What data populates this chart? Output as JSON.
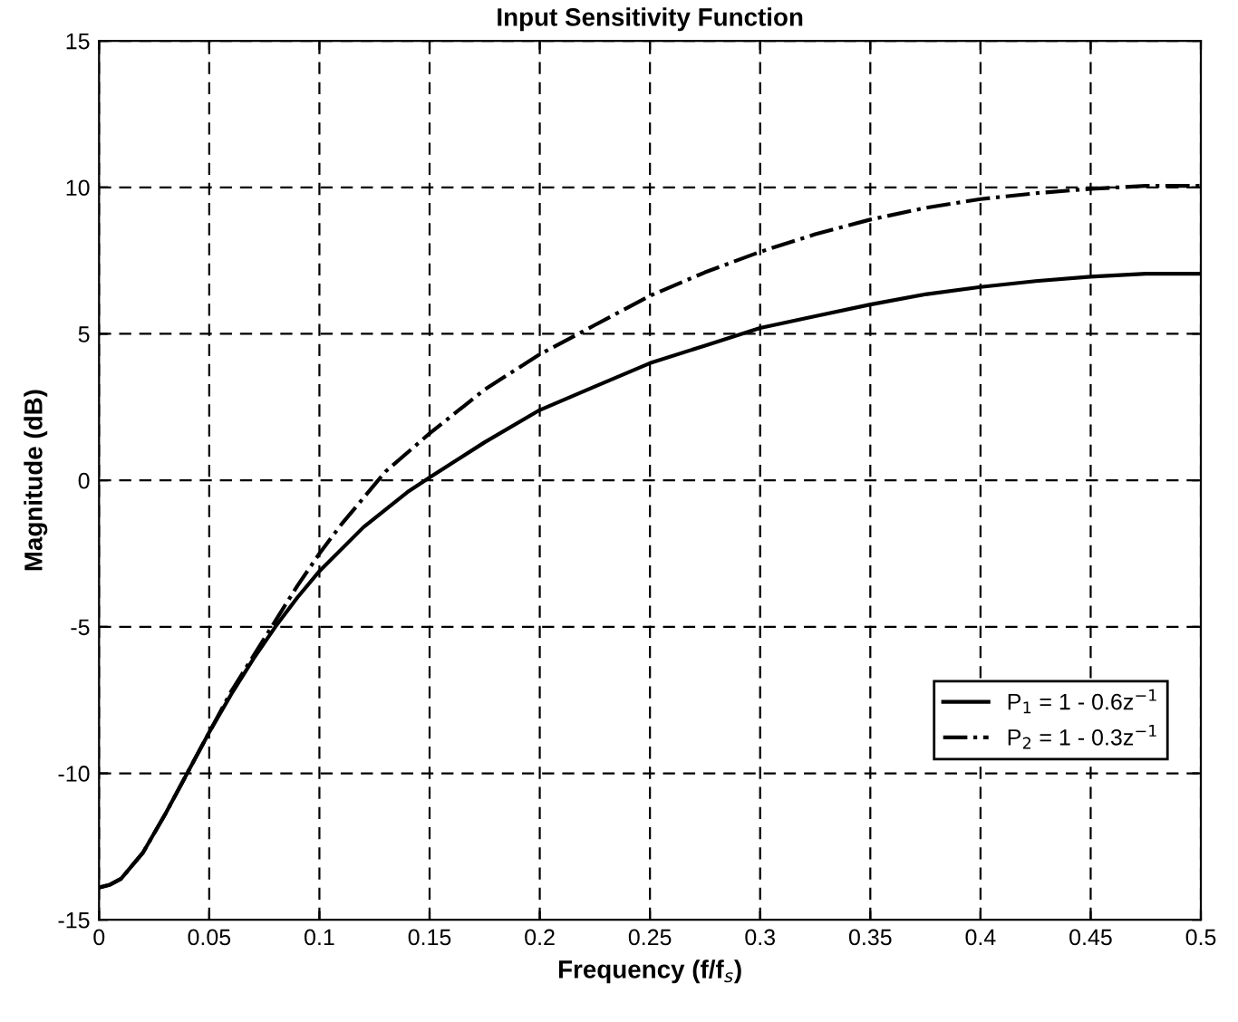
{
  "chart_data": {
    "type": "line",
    "title": "Input Sensitivity Function",
    "xlabel": "Frequency (f/f$_{s}$)",
    "ylabel": "Magnitude (dB)",
    "xlim": [
      0,
      0.5
    ],
    "ylim": [
      -15,
      15
    ],
    "xticks": [
      0,
      0.05,
      0.1,
      0.15,
      0.2,
      0.25,
      0.3,
      0.35,
      0.4,
      0.45,
      0.5
    ],
    "yticks": [
      -15,
      -10,
      -5,
      0,
      5,
      10,
      15
    ],
    "grid": true,
    "legend": "lower right",
    "series": [
      {
        "name": "P$_{1}$ = 1 - 0.6z$^{−1}$",
        "color": "#000000",
        "line_style": "solid",
        "x": [
          0,
          0.005,
          0.01,
          0.02,
          0.03,
          0.04,
          0.05,
          0.06,
          0.07,
          0.08,
          0.09,
          0.1,
          0.12,
          0.14,
          0.15,
          0.175,
          0.2,
          0.225,
          0.25,
          0.275,
          0.3,
          0.325,
          0.35,
          0.375,
          0.4,
          0.425,
          0.45,
          0.475,
          0.5
        ],
        "values": [
          -13.9,
          -13.8,
          -13.6,
          -12.7,
          -11.4,
          -10.0,
          -8.6,
          -7.3,
          -6.1,
          -5.0,
          -4.0,
          -3.1,
          -1.6,
          -0.4,
          0.1,
          1.3,
          2.4,
          3.2,
          4.0,
          4.6,
          5.2,
          5.6,
          6.0,
          6.35,
          6.6,
          6.8,
          6.95,
          7.05,
          7.05
        ]
      },
      {
        "name": "P$_{2}$ = 1 - 0.3z$^{−1}$",
        "color": "#000000",
        "line_style": "dashdot",
        "x": [
          0,
          0.005,
          0.01,
          0.02,
          0.03,
          0.04,
          0.05,
          0.06,
          0.07,
          0.08,
          0.09,
          0.1,
          0.11,
          0.12,
          0.13,
          0.15,
          0.175,
          0.2,
          0.225,
          0.25,
          0.275,
          0.3,
          0.325,
          0.35,
          0.375,
          0.4,
          0.425,
          0.45,
          0.475,
          0.5
        ],
        "values": [
          -13.9,
          -13.8,
          -13.6,
          -12.7,
          -11.4,
          -10.0,
          -8.6,
          -7.2,
          -6.0,
          -4.8,
          -3.6,
          -2.5,
          -1.5,
          -0.6,
          0.3,
          1.6,
          3.1,
          4.3,
          5.3,
          6.3,
          7.1,
          7.8,
          8.4,
          8.9,
          9.3,
          9.6,
          9.8,
          9.95,
          10.05,
          10.05
        ]
      }
    ]
  }
}
